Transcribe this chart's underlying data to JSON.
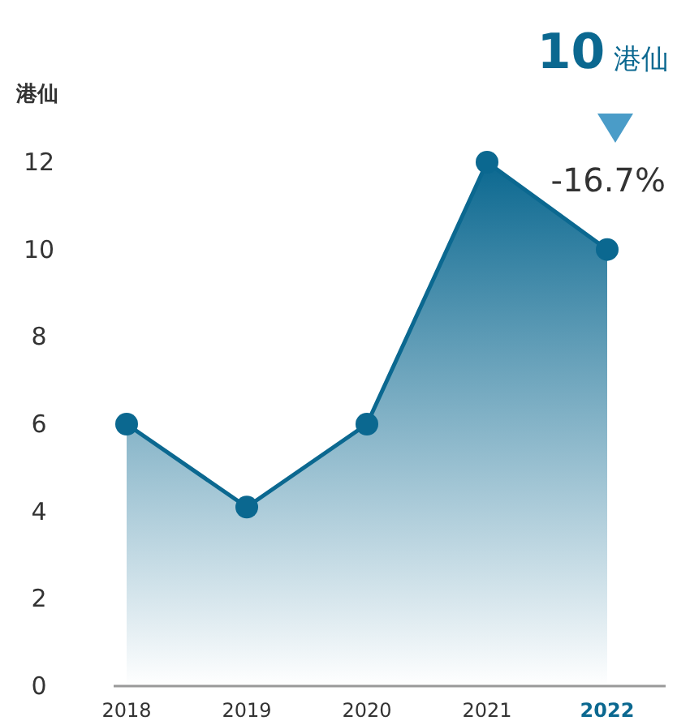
{
  "chart_data": {
    "type": "area",
    "ylabel": "港仙",
    "categories": [
      "2018",
      "2019",
      "2020",
      "2021",
      "2022"
    ],
    "series": [
      {
        "color": "#0b6890",
        "values": [
          6,
          4.1,
          6,
          12,
          10
        ]
      }
    ],
    "ylim": [
      0,
      12
    ],
    "yticks": [
      0,
      2,
      4,
      6,
      8,
      10,
      12
    ],
    "grid": false,
    "marker": "circle",
    "line_style": "solid",
    "annotations": [
      "10 港仙",
      "-16.7%"
    ]
  }
}
